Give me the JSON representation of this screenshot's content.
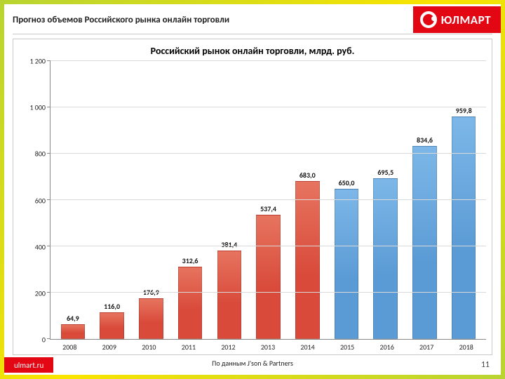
{
  "header": {
    "title": "Прогноз объемов Российского рынка онлайн торговли",
    "logo_text": "ЮЛМАРТ",
    "logo_bg": "#e30613",
    "logo_fg": "#ffffff"
  },
  "chart": {
    "type": "bar",
    "title": "Российский рынок онлайн торговли, млрд. руб.",
    "title_fontsize": 14,
    "title_color": "#000000",
    "label_fontsize": 10,
    "ylim": [
      0,
      1200
    ],
    "ytick_step": 200,
    "yticks": [
      "0",
      "200",
      "400",
      "600",
      "800",
      "1 000",
      "1 200"
    ],
    "categories": [
      "2008",
      "2009",
      "2010",
      "2011",
      "2012",
      "2013",
      "2014",
      "2015",
      "2016",
      "2017",
      "2018"
    ],
    "values": [
      64.9,
      116.0,
      176.9,
      312.6,
      381.4,
      537.4,
      683.0,
      650.0,
      695.5,
      834.6,
      959.8
    ],
    "value_labels": [
      "64,9",
      "116,0",
      "176,9",
      "312,6",
      "381,4",
      "537,4",
      "683,0",
      "650,0",
      "695,5",
      "834,6",
      "959,8"
    ],
    "bar_colors": [
      "#d94a3a",
      "#d94a3a",
      "#d94a3a",
      "#d94a3a",
      "#d94a3a",
      "#d94a3a",
      "#d94a3a",
      "#5b9bd5",
      "#5b9bd5",
      "#5b9bd5",
      "#5b9bd5"
    ],
    "bar_gradient_top": [
      "#e6745f",
      "#e6745f",
      "#e6745f",
      "#e6745f",
      "#e6745f",
      "#e6745f",
      "#e6745f",
      "#7db7e8",
      "#7db7e8",
      "#7db7e8",
      "#7db7e8"
    ],
    "bar_width": 0.62,
    "background_color": "#ffffff",
    "grid_color": "#d9d9d9",
    "axis_color": "#888888"
  },
  "footer": {
    "site": "ulmart.ru",
    "source": "По данным J'son & Partners",
    "page": "11"
  }
}
